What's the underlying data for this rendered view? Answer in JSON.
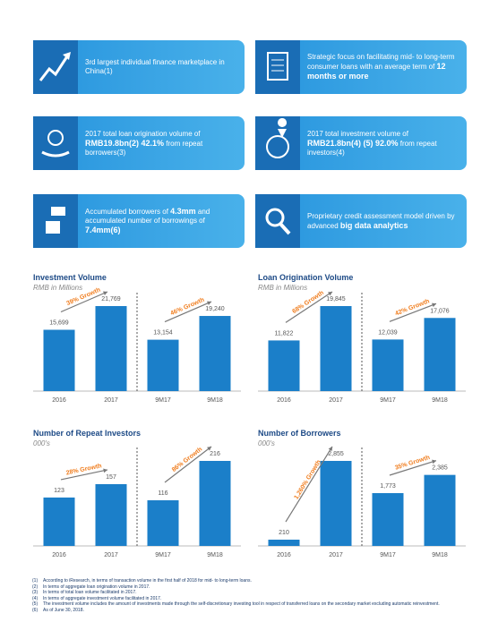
{
  "features": [
    {
      "parts": [
        {
          "text": "3rd largest individual finance marketplace in China(1)",
          "bold": false
        }
      ]
    },
    {
      "parts": [
        {
          "text": "Strategic focus on facilitating mid- to long-term consumer loans with an average term of ",
          "bold": false
        },
        {
          "text": "12 months or more",
          "bold": true
        }
      ]
    },
    {
      "parts": [
        {
          "text": "2017 total loan origination volume of ",
          "bold": false
        },
        {
          "text": "RMB19.8bn(2) 42.1%",
          "bold": true
        },
        {
          "text": " from repeat borrowers(3)",
          "bold": false
        }
      ]
    },
    {
      "parts": [
        {
          "text": "2017 total investment volume of ",
          "bold": false
        },
        {
          "text": "RMB21.8bn(4) (5) 92.0%",
          "bold": true
        },
        {
          "text": " from repeat investors(4)",
          "bold": false
        }
      ]
    },
    {
      "parts": [
        {
          "text": "Accumulated borrowers of ",
          "bold": false
        },
        {
          "text": "4.3mm",
          "bold": true
        },
        {
          "text": " and accumulated number of borrowings of ",
          "bold": false
        },
        {
          "text": "7.4mm(6)",
          "bold": true
        }
      ]
    },
    {
      "parts": [
        {
          "text": "Proprietary credit assessment model driven by advanced ",
          "bold": false
        },
        {
          "text": "big data analytics",
          "bold": true
        }
      ]
    }
  ],
  "chart_data": [
    {
      "type": "bar",
      "title": "Investment Volume",
      "subtitle": "RMB in Millions",
      "color": "#1b7fc9",
      "categories": [
        "2016",
        "2017",
        "9M17",
        "9M18"
      ],
      "values": [
        15699,
        21769,
        13154,
        19240
      ],
      "value_labels": [
        "15,699",
        "21,769",
        "13,154",
        "19,240"
      ],
      "annotations": [
        "39% Growth",
        "46% Growth"
      ]
    },
    {
      "type": "bar",
      "title": "Loan Origination Volume",
      "subtitle": "RMB in Millions",
      "color": "#1b7fc9",
      "categories": [
        "2016",
        "2017",
        "9M17",
        "9M18"
      ],
      "values": [
        11822,
        19845,
        12039,
        17076
      ],
      "value_labels": [
        "11,822",
        "19,845",
        "12,039",
        "17,076"
      ],
      "annotations": [
        "68% Growth",
        "42% Growth"
      ]
    },
    {
      "type": "bar",
      "title": "Number of Repeat Investors",
      "subtitle": "000's",
      "color": "#1b7fc9",
      "categories": [
        "2016",
        "2017",
        "9M17",
        "9M18"
      ],
      "values": [
        123,
        157,
        116,
        216
      ],
      "value_labels": [
        "123",
        "157",
        "116",
        "216"
      ],
      "annotations": [
        "28% Growth",
        "86% Growth"
      ]
    },
    {
      "type": "bar",
      "title": "Number of Borrowers",
      "subtitle": "000's",
      "color": "#1b7fc9",
      "categories": [
        "2016",
        "2017",
        "9M17",
        "9M18"
      ],
      "values": [
        210,
        2855,
        1773,
        2385
      ],
      "value_labels": [
        "210",
        "2,855",
        "1,773",
        "2,385"
      ],
      "annotations": [
        "1,260% Growth",
        "35% Growth"
      ]
    }
  ],
  "footnotes": [
    {
      "marker": "(1)",
      "text": "According to iResearch, in terms of transaction volume in the first half of 2018 for mid- to long-term loans."
    },
    {
      "marker": "(2)",
      "text": "In terms of aggregate loan origination volume in 2017."
    },
    {
      "marker": "(3)",
      "text": "In terms of total loan volume facilitated in 2017."
    },
    {
      "marker": "(4)",
      "text": "In terms of aggregate investment volume facilitated in 2017."
    },
    {
      "marker": "(5)",
      "text": "The investment volume includes the amount of investments made through the self-discretionary investing tool in respect of transferred loans on the secondary market excluding automatic reinvestment."
    },
    {
      "marker": "(6)",
      "text": "As of June 30, 2018."
    }
  ]
}
